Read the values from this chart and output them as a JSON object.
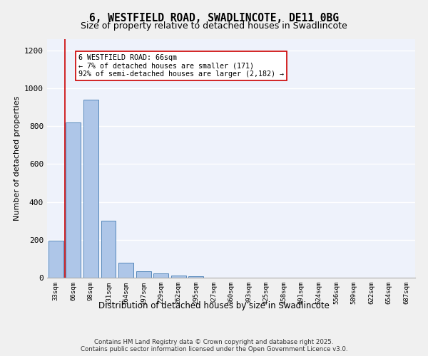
{
  "title1": "6, WESTFIELD ROAD, SWADLINCOTE, DE11 0BG",
  "title2": "Size of property relative to detached houses in Swadlincote",
  "xlabel": "Distribution of detached houses by size in Swadlincote",
  "ylabel": "Number of detached properties",
  "categories": [
    "33sqm",
    "66sqm",
    "98sqm",
    "131sqm",
    "164sqm",
    "197sqm",
    "229sqm",
    "262sqm",
    "295sqm",
    "327sqm",
    "360sqm",
    "393sqm",
    "425sqm",
    "458sqm",
    "491sqm",
    "524sqm",
    "556sqm",
    "589sqm",
    "622sqm",
    "654sqm",
    "687sqm"
  ],
  "values": [
    196,
    820,
    940,
    300,
    80,
    35,
    22,
    12,
    8,
    0,
    0,
    0,
    0,
    0,
    0,
    0,
    0,
    0,
    0,
    0,
    0
  ],
  "bar_color": "#aec6e8",
  "bar_edge_color": "#5588bb",
  "vline_x": 1,
  "vline_color": "#cc0000",
  "annotation_text": "6 WESTFIELD ROAD: 66sqm\n← 7% of detached houses are smaller (171)\n92% of semi-detached houses are larger (2,182) →",
  "annotation_box_color": "#ffffff",
  "annotation_box_edge": "#cc0000",
  "ylim": [
    0,
    1260
  ],
  "yticks": [
    0,
    200,
    400,
    600,
    800,
    1000,
    1200
  ],
  "background_color": "#eef2fb",
  "grid_color": "#ffffff",
  "footer1": "Contains HM Land Registry data © Crown copyright and database right 2025.",
  "footer2": "Contains public sector information licensed under the Open Government Licence v3.0."
}
